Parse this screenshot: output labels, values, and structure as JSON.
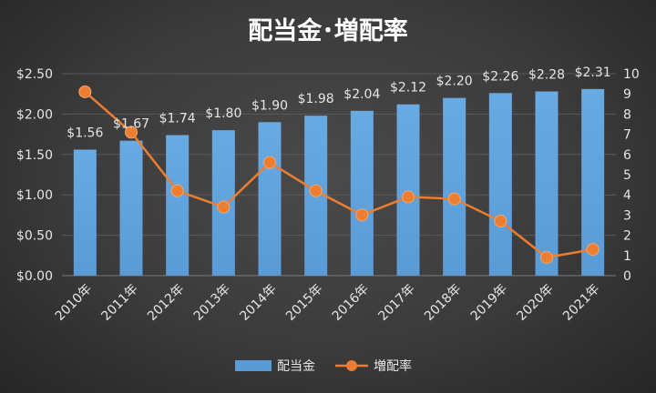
{
  "chart_data": {
    "type": "bar",
    "title": "配当金･増配率",
    "categories": [
      "2010年",
      "2011年",
      "2012年",
      "2013年",
      "2014年",
      "2015年",
      "2016年",
      "2017年",
      "2018年",
      "2019年",
      "2020年",
      "2021年"
    ],
    "series": [
      {
        "name": "配当金",
        "type": "bar",
        "axis": "left",
        "values": [
          1.56,
          1.67,
          1.74,
          1.8,
          1.9,
          1.98,
          2.04,
          2.12,
          2.2,
          2.26,
          2.28,
          2.31
        ],
        "labels": [
          "$1.56",
          "$1.67",
          "$1.74",
          "$1.80",
          "$1.90",
          "$1.98",
          "$2.04",
          "$2.12",
          "$2.20",
          "$2.26",
          "$2.28",
          "$2.31"
        ],
        "color": "#5b9bd5"
      },
      {
        "name": "増配率",
        "type": "line",
        "axis": "right",
        "values": [
          9.1,
          7.1,
          4.2,
          3.4,
          5.6,
          4.2,
          3.0,
          3.9,
          3.8,
          2.7,
          0.9,
          1.3
        ],
        "color": "#ed7d31"
      }
    ],
    "y_left": {
      "ylim": [
        0,
        2.5
      ],
      "ticks": [
        "$0.00",
        "$0.50",
        "$1.00",
        "$1.50",
        "$2.00",
        "$2.50"
      ]
    },
    "y_right": {
      "ylim": [
        0,
        10
      ],
      "ticks": [
        "0",
        "1",
        "2",
        "3",
        "4",
        "5",
        "6",
        "7",
        "8",
        "9",
        "10"
      ]
    },
    "grid": true,
    "legend_position": "bottom"
  }
}
